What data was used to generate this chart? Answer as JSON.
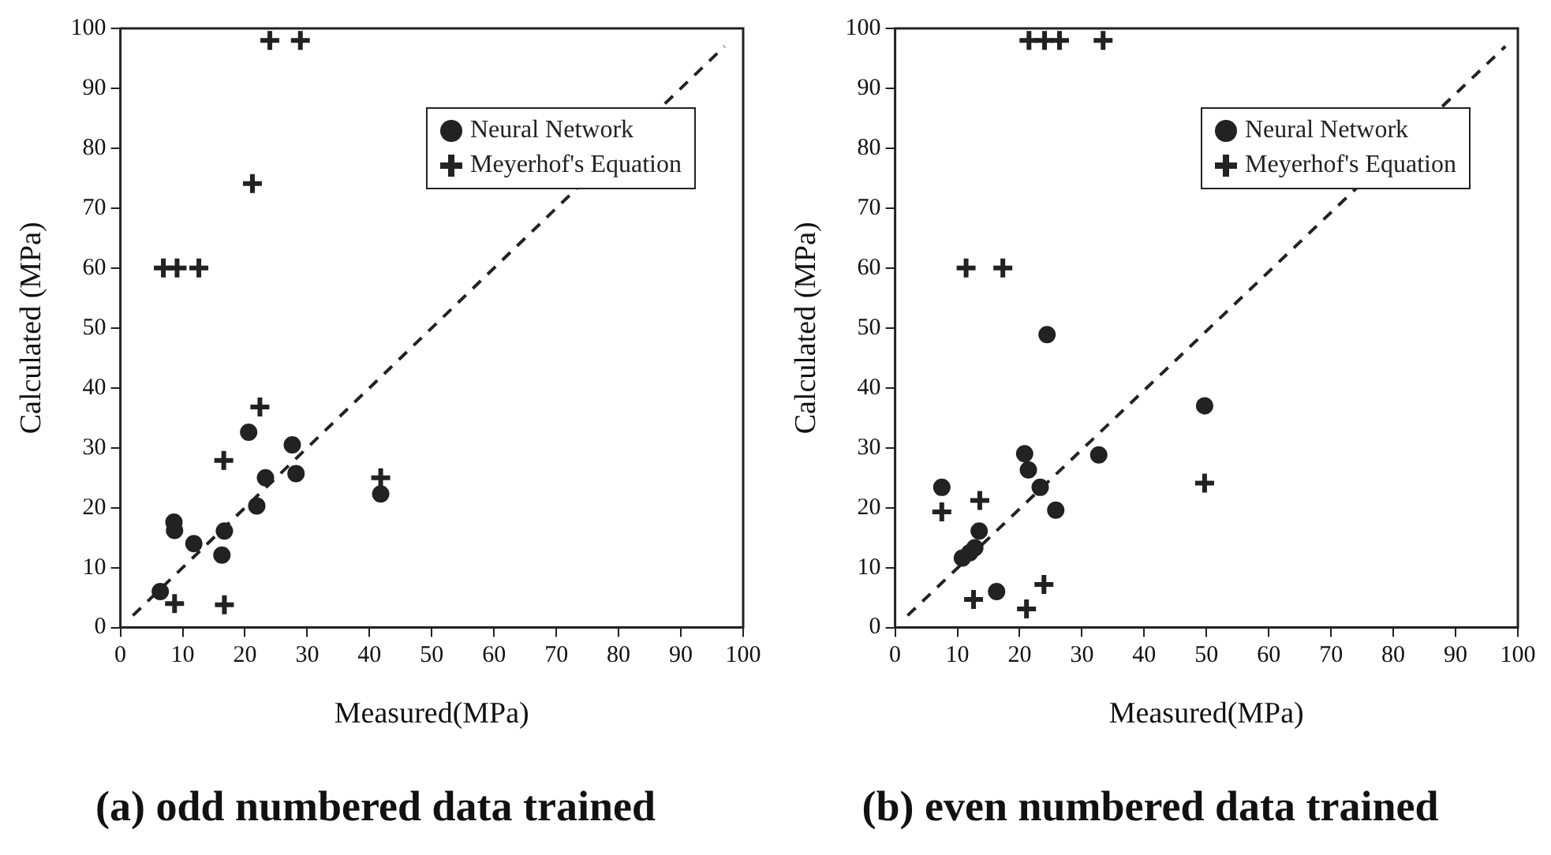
{
  "chart_data": [
    {
      "type": "scatter",
      "title": "(a) odd numbered data trained",
      "xlabel": "Measured(MPa)",
      "ylabel": "Calculated (MPa)",
      "xlim": [
        0,
        100
      ],
      "ylim": [
        0,
        100
      ],
      "xticks": [
        0,
        10,
        20,
        30,
        40,
        50,
        60,
        70,
        80,
        90,
        100
      ],
      "yticks": [
        0,
        10,
        20,
        30,
        40,
        50,
        60,
        70,
        80,
        90,
        100
      ],
      "grid": false,
      "legend": "top right",
      "series": [
        {
          "name": "Neural Network",
          "color": "#222222",
          "marker": "circle",
          "x": [
            6.4,
            8.6,
            8.7,
            11.8,
            16.7,
            16.3,
            20.6,
            21.9,
            23.3,
            27.6,
            28.2,
            41.8
          ],
          "values": [
            6,
            17.6,
            16.2,
            14,
            16.1,
            12.1,
            32.6,
            20.3,
            25,
            30.5,
            25.7,
            22.3
          ]
        },
        {
          "name": "Meyerhof's Equation",
          "color": "#222222",
          "marker": "cross",
          "x": [
            8.7,
            16.7,
            16.6,
            22.4,
            21.2,
            6.9,
            9.1,
            12.6,
            24,
            28.9,
            41.8
          ],
          "values": [
            4,
            3.8,
            27.9,
            36.8,
            74.1,
            60,
            60,
            60,
            98,
            98,
            25
          ]
        },
        {
          "type": "line",
          "color": "#222222",
          "marker": "none",
          "line_style": "dashed",
          "x": [
            2,
            97
          ],
          "values": [
            2,
            97
          ]
        }
      ]
    },
    {
      "type": "scatter",
      "title": "(b) even numbered data trained",
      "xlabel": "Measured(MPa)",
      "ylabel": "Calculated (MPa)",
      "xlim": [
        0,
        100
      ],
      "ylim": [
        0,
        100
      ],
      "xticks": [
        0,
        10,
        20,
        30,
        40,
        50,
        60,
        70,
        80,
        90,
        100
      ],
      "yticks": [
        0,
        10,
        20,
        30,
        40,
        50,
        60,
        70,
        80,
        90,
        100
      ],
      "grid": false,
      "legend": "top right",
      "series": [
        {
          "name": "Neural Network",
          "color": "#222222",
          "marker": "circle",
          "x": [
            7.5,
            10.8,
            12,
            12.8,
            13.5,
            16.3,
            20.8,
            21.4,
            23.3,
            24.4,
            25.8,
            32.7,
            49.7
          ],
          "values": [
            23.4,
            11.6,
            12.5,
            13.3,
            16.1,
            6,
            29,
            26.3,
            23.4,
            48.9,
            19.6,
            28.8,
            37
          ]
        },
        {
          "name": "Meyerhof's Equation",
          "color": "#222222",
          "marker": "cross",
          "x": [
            7.5,
            13.6,
            12.6,
            21.1,
            23.9,
            11.4,
            17.3,
            49.7,
            21.5,
            24,
            26.4,
            33.4
          ],
          "values": [
            19.3,
            21.2,
            4.7,
            3.1,
            7.2,
            60,
            60,
            24.1,
            98,
            98,
            98,
            98
          ]
        },
        {
          "type": "line",
          "color": "#222222",
          "marker": "none",
          "line_style": "dashed",
          "x": [
            2,
            98
          ],
          "values": [
            2,
            97
          ]
        }
      ]
    }
  ]
}
